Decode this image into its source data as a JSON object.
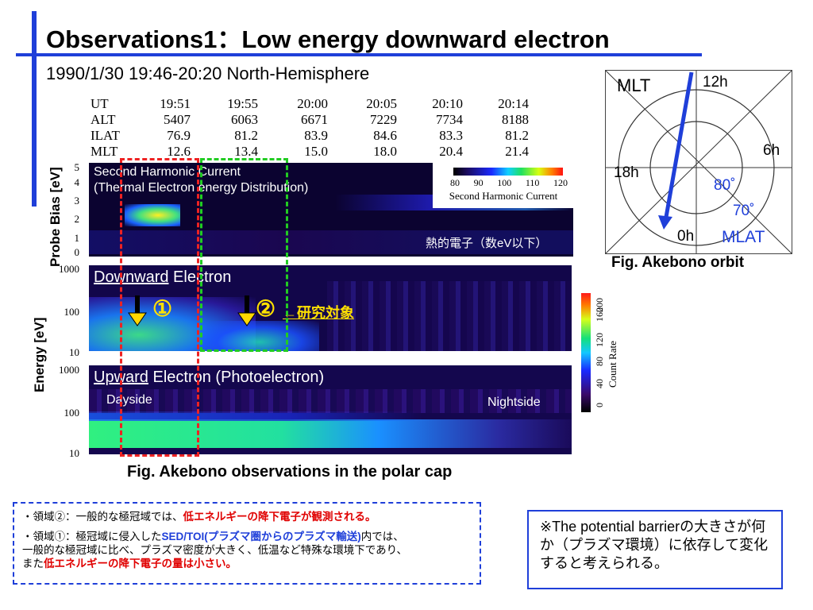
{
  "title": "Observations1：Low energy downward electron",
  "subtitle": "1990/1/30 19:46-20:20 North-Hemisphere",
  "ephemeris": {
    "labels": [
      "UT",
      "ALT",
      "ILAT",
      "MLT"
    ],
    "columns": [
      [
        "19:51",
        "5407",
        "76.9",
        "12.6"
      ],
      [
        "19:55",
        "6063",
        "81.2",
        "13.4"
      ],
      [
        "20:00",
        "6671",
        "83.9",
        "15.0"
      ],
      [
        "20:05",
        "7229",
        "84.6",
        "18.0"
      ],
      [
        "20:10",
        "7734",
        "83.3",
        "20.4"
      ],
      [
        "20:14",
        "8188",
        "81.2",
        "21.4"
      ]
    ]
  },
  "panel1": {
    "ylabel": "Probe Bias [eV]",
    "yticks": [
      "5",
      "4",
      "3",
      "2",
      "1",
      "0"
    ],
    "title_line1": "Second Harmonic Current",
    "title_line2": "(Thermal Electron energy Distribution)",
    "legend_ticks": [
      "80",
      "90",
      "100",
      "110",
      "120"
    ],
    "legend_label": "Second Harmonic Current",
    "annotation": "熱的電子（数eV以下）"
  },
  "panel2": {
    "ylabel": "Energy [eV]",
    "yticks": [
      "1000",
      "100",
      "10"
    ],
    "title_underlined": "Downward",
    "title_rest": " Electron",
    "marker1": "①",
    "marker2": "②",
    "marker2_note": "←研究対象"
  },
  "panel3": {
    "yticks": [
      "1000",
      "100",
      "10"
    ],
    "title_underlined": "Upward",
    "title_rest": " Electron (Photoelectron)",
    "dayside": "Dayside",
    "nightside": "Nightside"
  },
  "colorbar": {
    "ticks": [
      "0",
      "40",
      "80",
      "120",
      "160",
      "200"
    ],
    "label": "Count Rate"
  },
  "caption": "Fig. Akebono observations in the polar cap",
  "orbit": {
    "mlt": "MLT",
    "h12": "12h",
    "h6": "6h",
    "h18": "18h",
    "h0": "0h",
    "lat80": "80˚",
    "lat70": "70˚",
    "mlat": "MLAT",
    "caption": "Fig. Akebono orbit"
  },
  "note1": {
    "line1_a": "・領域②：一般的な極冠域では、",
    "line1_b": "低エネルギーの降下電子が観測される。",
    "line2_a": "・領域①：極冠域に侵入した",
    "line2_b": "SED/TOI(プラズマ圏からのプラズマ輸送)",
    "line2_c": "内では、",
    "line3": "一般的な極冠域に比べ、プラズマ密度が大きく、低温など特殊な環境下であり、",
    "line4_a": "また",
    "line4_b": "低エネルギーの降下電子の量は小さい。"
  },
  "note2": {
    "text": "※The potential barrierの大きさが何か（プラズマ環境）に依存して変化すると考えられる。"
  },
  "colors": {
    "accent": "#1f3fd9",
    "highlight": "#e00000",
    "region1": "#e22222",
    "region2": "#22cc22"
  }
}
